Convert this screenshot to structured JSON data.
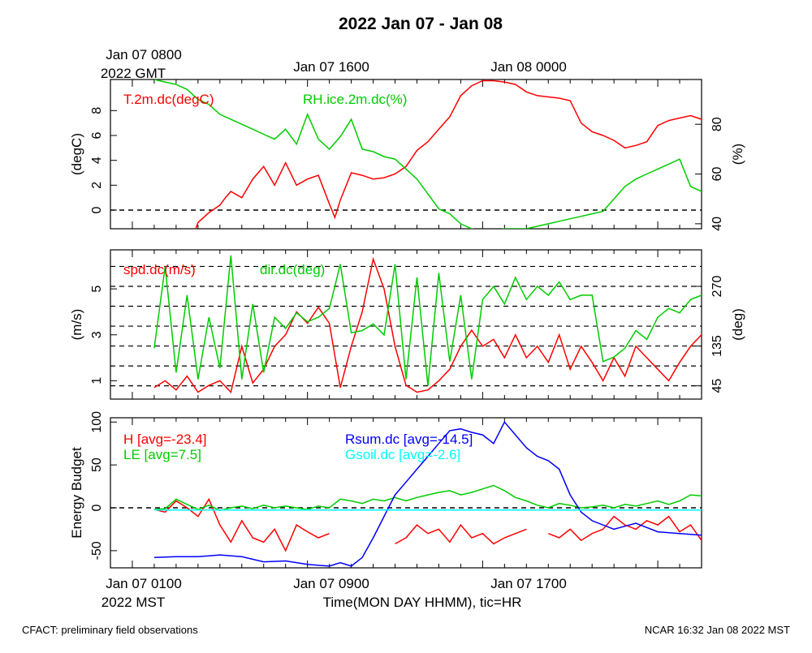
{
  "title": "2022 Jan 07 - Jan 08",
  "top_time_labels": [
    "Jan 07 0800",
    "2022 GMT",
    "Jan 07 1600",
    "Jan 08 0000"
  ],
  "bottom_time_labels": [
    "Jan 07 0100",
    "2022 MST",
    "Jan 07 0900",
    "Jan 07 1700"
  ],
  "xlabel": "Time(MON DAY HHMM), tic=HR",
  "footer_left": "CFACT: preliminary field observations",
  "footer_right": "NCAR 16:32 Jan 08 2022 MST",
  "colors": {
    "red": "#ff0000",
    "green": "#00cc00",
    "blue": "#0000ff",
    "cyan": "#00ffff"
  },
  "chart_data": [
    {
      "type": "line",
      "xlim": [
        0,
        27
      ],
      "ylabel": "(degC)",
      "ylim": [
        -1.5,
        10.5
      ],
      "yticks": [
        0,
        2,
        4,
        6,
        8
      ],
      "ylabel_right": "(%)",
      "ylim_right": [
        38,
        98
      ],
      "yticks_right": [
        40,
        60,
        80
      ],
      "reference_line": 0,
      "series": [
        {
          "name": "T.2m.dc(degC)",
          "color": "red",
          "axis": "left",
          "x": [
            1.75,
            2.0,
            2.5,
            3.0,
            3.25,
            3.5,
            4.0,
            4.5,
            5.0,
            5.5,
            6.0,
            6.5,
            7.0,
            7.5,
            8.0,
            8.25,
            8.5,
            9.0,
            9.5,
            10.0,
            10.5,
            11.0,
            11.5,
            12.0,
            12.5,
            13.0,
            13.5,
            14.0,
            14.5,
            15.0,
            15.5,
            16.0,
            16.5,
            17.0,
            17.5,
            18.0,
            18.5,
            19.0,
            19.5,
            20.0,
            20.5,
            21.0,
            21.5,
            22.0,
            22.5,
            23.0,
            23.5,
            24.0,
            24.5,
            25.0,
            25.5,
            26.0,
            26.5,
            27.0
          ],
          "y": [
            -2.2,
            -1.0,
            -0.2,
            0.4,
            1.0,
            1.5,
            1.0,
            2.5,
            3.5,
            2.0,
            3.8,
            2.0,
            2.5,
            2.8,
            0.5,
            -0.6,
            0.8,
            3.0,
            2.8,
            2.5,
            2.6,
            2.9,
            3.5,
            4.8,
            5.5,
            6.5,
            7.5,
            9.2,
            10.0,
            10.4,
            10.4,
            10.3,
            10.1,
            9.5,
            9.2,
            9.1,
            9.0,
            8.8,
            7.0,
            6.3,
            6.0,
            5.6,
            5.0,
            5.2,
            5.5,
            6.8,
            7.2,
            7.4,
            7.6,
            7.3,
            7.2,
            6.9,
            6.5,
            5.8
          ]
        },
        {
          "name": "RH.ice.2m.dc(%)",
          "color": "green",
          "axis": "right",
          "x": [
            0.0,
            0.5,
            1.0,
            1.5,
            2.0,
            2.5,
            3.0,
            3.5,
            4.0,
            4.5,
            5.0,
            5.5,
            6.0,
            6.5,
            7.0,
            7.5,
            8.0,
            8.5,
            9.0,
            9.5,
            10.0,
            10.5,
            11.0,
            11.5,
            12.0,
            12.5,
            13.0,
            13.5,
            14.0,
            14.5,
            15.0,
            15.5,
            16.0,
            16.5,
            17.0,
            17.5,
            18.0,
            18.5,
            19.0,
            19.5,
            20.0,
            20.5,
            21.0,
            21.5,
            22.0,
            22.5,
            23.0,
            23.5,
            24.0,
            24.5,
            25.0,
            25.5,
            26.0,
            26.5,
            27.0
          ],
          "y": [
            98,
            97,
            96,
            94,
            90,
            88,
            84,
            82,
            80,
            78,
            76,
            74,
            78,
            72,
            84,
            74,
            70,
            75,
            82,
            70,
            69,
            67,
            66,
            62,
            58,
            52,
            46,
            44,
            40,
            38,
            37,
            37,
            38,
            38,
            38,
            39,
            40,
            41,
            42,
            43,
            44,
            45,
            50,
            55,
            58,
            60,
            62,
            64,
            66,
            55,
            53,
            52,
            53,
            54,
            56
          ]
        }
      ]
    },
    {
      "type": "line",
      "xlim": [
        0,
        27
      ],
      "ylabel": "(m/s)",
      "ylim": [
        0.2,
        6.7
      ],
      "yticks": [
        1,
        3,
        5
      ],
      "ylabel_right": "(deg)",
      "ylim_right": [
        15,
        352.5
      ],
      "yticks_right": [
        45,
        135,
        270
      ],
      "dashed_lines_right": [
        45,
        90,
        135,
        180,
        225,
        270,
        315
      ],
      "series": [
        {
          "name": "spd.dc(m/s)",
          "color": "red",
          "axis": "left",
          "x": [
            0.0,
            0.5,
            1.0,
            1.5,
            2.0,
            2.5,
            3.0,
            3.5,
            4.0,
            4.5,
            5.0,
            5.5,
            6.0,
            6.5,
            7.0,
            7.5,
            8.0,
            8.5,
            9.0,
            9.5,
            10.0,
            10.5,
            11.0,
            11.5,
            12.0,
            12.5,
            13.0,
            13.5,
            14.0,
            14.5,
            15.0,
            15.5,
            16.0,
            16.5,
            17.0,
            17.5,
            18.0,
            18.5,
            19.0,
            19.5,
            20.0,
            20.5,
            21.0,
            21.5,
            22.0,
            22.5,
            23.0,
            23.5,
            24.0,
            24.5,
            25.0,
            25.5,
            26.0,
            26.5,
            27.0
          ],
          "y": [
            0.7,
            1.0,
            0.6,
            1.2,
            0.5,
            0.8,
            1.0,
            0.5,
            2.5,
            0.9,
            1.5,
            2.5,
            3.0,
            4.0,
            3.5,
            4.2,
            3.5,
            0.7,
            2.5,
            4.0,
            6.3,
            5.0,
            2.5,
            0.8,
            0.5,
            0.6,
            1.0,
            1.5,
            2.5,
            3.2,
            2.5,
            2.8,
            2.0,
            3.0,
            2.0,
            2.5,
            1.8,
            3.0,
            1.5,
            2.5,
            1.8,
            1.0,
            2.0,
            1.2,
            2.5,
            2.0,
            1.5,
            1.0,
            1.8,
            2.5,
            3.0,
            4.2,
            3.5,
            2.5,
            2.5
          ]
        },
        {
          "name": "dir.dc(deg)",
          "color": "green",
          "axis": "right",
          "x": [
            0.0,
            0.5,
            1.0,
            1.5,
            2.0,
            2.5,
            3.0,
            3.5,
            4.0,
            4.5,
            5.0,
            5.5,
            6.0,
            6.5,
            7.0,
            7.5,
            8.0,
            8.5,
            9.0,
            9.5,
            10.0,
            10.5,
            11.0,
            11.5,
            12.0,
            12.5,
            13.0,
            13.5,
            14.0,
            14.5,
            15.0,
            15.5,
            16.0,
            16.5,
            17.0,
            17.5,
            18.0,
            18.5,
            19.0,
            19.5,
            20.0,
            20.5,
            21.0,
            21.5,
            22.0,
            22.5,
            23.0,
            23.5,
            24.0,
            24.5,
            25.0,
            25.5,
            26.0,
            26.5,
            27.0
          ],
          "y": [
            130,
            315,
            75,
            250,
            60,
            200,
            85,
            340,
            60,
            230,
            75,
            200,
            175,
            210,
            190,
            200,
            220,
            320,
            165,
            170,
            185,
            160,
            320,
            60,
            290,
            45,
            300,
            100,
            250,
            60,
            240,
            270,
            230,
            290,
            240,
            270,
            250,
            280,
            240,
            250,
            250,
            100,
            110,
            130,
            170,
            150,
            200,
            220,
            210,
            240,
            250,
            255,
            260,
            250,
            290
          ]
        }
      ]
    },
    {
      "type": "line",
      "xlim": [
        0,
        27
      ],
      "ylabel": "Energy Budget",
      "ylim": [
        -70,
        105
      ],
      "yticks": [
        -50,
        0,
        50,
        100
      ],
      "reference_line": 0,
      "series": [
        {
          "name": "H",
          "label": "H [avg=-23.4]",
          "color": "red",
          "x": [
            0.0,
            0.5,
            1.0,
            1.5,
            2.0,
            2.5,
            3.0,
            3.5,
            4.0,
            4.5,
            5.0,
            5.5,
            6.0,
            6.5,
            7.0,
            7.5,
            8.0,
            null,
            11.0,
            11.5,
            12.0,
            12.5,
            13.0,
            13.5,
            14.0,
            14.5,
            15.0,
            15.5,
            16.0,
            16.5,
            17.0,
            null,
            18.0,
            18.5,
            19.0,
            19.5,
            20.0,
            20.5,
            21.0,
            21.5,
            22.0,
            22.5,
            23.0,
            23.5,
            24.0,
            24.5,
            25.0,
            25.5,
            26.0,
            26.5,
            27.0
          ],
          "y": [
            -2,
            -5,
            8,
            0,
            -10,
            10,
            -20,
            -40,
            -15,
            -35,
            -40,
            -25,
            -50,
            -20,
            -28,
            -35,
            -30,
            null,
            -42,
            -35,
            -20,
            -30,
            -25,
            -40,
            -20,
            -35,
            -30,
            -42,
            -35,
            -30,
            -25,
            null,
            -30,
            -35,
            -25,
            -38,
            -30,
            -25,
            -10,
            -20,
            -25,
            -15,
            -20,
            -10,
            -28,
            -20,
            -38,
            -25,
            -45,
            -38,
            -30
          ]
        },
        {
          "name": "LE",
          "label": "LE [avg=7.5]",
          "color": "green",
          "x": [
            0.0,
            0.5,
            1.0,
            1.5,
            2.0,
            2.5,
            3.0,
            3.5,
            4.0,
            4.5,
            5.0,
            5.5,
            6.0,
            6.5,
            7.0,
            7.5,
            8.0,
            8.5,
            9.0,
            9.5,
            10.0,
            10.5,
            11.0,
            11.5,
            12.0,
            12.5,
            13.0,
            13.5,
            14.0,
            14.5,
            15.0,
            15.5,
            16.0,
            16.5,
            17.0,
            17.5,
            18.0,
            18.5,
            19.0,
            19.5,
            20.0,
            20.5,
            21.0,
            21.5,
            22.0,
            22.5,
            23.0,
            23.5,
            24.0,
            24.5,
            25.0,
            25.5,
            26.0,
            26.5,
            27.0
          ],
          "y": [
            -2,
            -1,
            10,
            4,
            -2,
            3,
            -3,
            0,
            2,
            -1,
            3,
            0,
            2,
            0,
            -2,
            2,
            0,
            10,
            8,
            5,
            10,
            8,
            12,
            8,
            12,
            15,
            18,
            20,
            15,
            18,
            22,
            26,
            20,
            12,
            8,
            3,
            0,
            5,
            3,
            0,
            1,
            3,
            0,
            4,
            2,
            5,
            8,
            4,
            8,
            15,
            14,
            15,
            13,
            10,
            12
          ]
        },
        {
          "name": "Rsum.dc",
          "label": "Rsum.dc [avg=-14.5]",
          "color": "blue",
          "x": [
            0.0,
            1.0,
            2.0,
            3.0,
            4.0,
            5.0,
            6.0,
            7.0,
            8.0,
            8.5,
            9.0,
            9.5,
            10.0,
            10.5,
            11.0,
            11.5,
            12.0,
            12.5,
            13.0,
            13.5,
            14.0,
            14.5,
            15.0,
            15.5,
            16.0,
            16.5,
            17.0,
            17.5,
            18.0,
            18.5,
            19.0,
            19.5,
            20.0,
            21.0,
            22.0,
            23.0,
            24.0,
            25.0,
            26.0,
            26.5,
            27.0
          ],
          "y": [
            -58,
            -57,
            -57,
            -55,
            -57,
            -63,
            -62,
            -66,
            -68,
            -64,
            -68,
            -58,
            -35,
            -10,
            15,
            30,
            45,
            60,
            75,
            90,
            92,
            88,
            85,
            75,
            100,
            85,
            70,
            60,
            55,
            45,
            15,
            -5,
            -15,
            -25,
            -18,
            -28,
            -30,
            -32,
            -35,
            -28,
            -10
          ]
        },
        {
          "name": "Gsoil.dc",
          "label": "Gsoil.dc [avg=-2.6]",
          "color": "cyan",
          "x": [
            0.0,
            27.0
          ],
          "y": [
            -2.6,
            -2.6
          ]
        }
      ]
    }
  ]
}
